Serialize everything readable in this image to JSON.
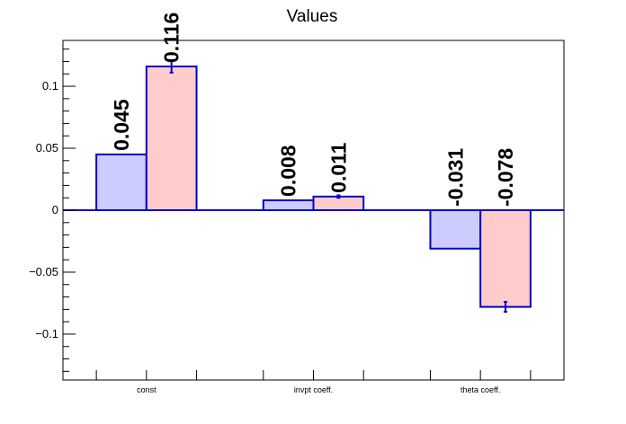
{
  "chart_data": {
    "type": "bar",
    "title": "Values",
    "xlabel": "",
    "ylabel": "",
    "categories": [
      "const",
      "invpt coeff.",
      "theta coeff."
    ],
    "ylim": [
      -0.137,
      0.137
    ],
    "yticks": [
      -0.1,
      -0.05,
      0,
      0.05,
      0.1
    ],
    "ytick_labels": [
      "−0.1",
      "−0.05",
      "0",
      "0.05",
      "0.1"
    ],
    "grid": false,
    "series": [
      {
        "values": [
          0.045,
          0.008,
          -0.031
        ],
        "labels": [
          "0.045",
          "0.008",
          "-0.031"
        ],
        "errors": [
          0.0,
          0.0,
          0.0
        ],
        "fill": "#ccccff",
        "stroke": "#0000cc"
      },
      {
        "values": [
          0.116,
          0.011,
          -0.078
        ],
        "labels": [
          "0.116",
          "0.011",
          "-0.078"
        ],
        "errors": [
          0.005,
          0.001,
          0.004
        ],
        "fill": "#ffcccc",
        "stroke": "#0000cc"
      }
    ]
  }
}
